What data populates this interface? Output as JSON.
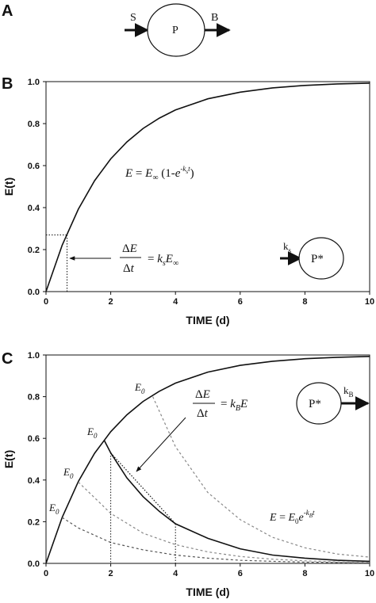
{
  "panels": {
    "a": {
      "letter": "A",
      "input_label": "S",
      "pool_label": "P",
      "output_label": "B"
    },
    "b": {
      "letter": "B",
      "pool_label": "P*",
      "rate_label": "k",
      "rate_sub": "s"
    },
    "c": {
      "letter": "C",
      "pool_label": "P*",
      "rate_label": "k",
      "rate_sub": "B",
      "e0": "E",
      "e0_sub": "0"
    }
  },
  "chart_data": [
    {
      "type": "line",
      "panel": "B",
      "xlabel": "TIME (d)",
      "ylabel": "E(t)",
      "xlim": [
        0,
        10
      ],
      "ylim": [
        0,
        1.0
      ],
      "x_ticks": [
        "0",
        "2",
        "4",
        "6",
        "8",
        "10"
      ],
      "y_ticks": [
        "0.0",
        "0.2",
        "0.4",
        "0.6",
        "0.8",
        "1.0"
      ],
      "grid": false,
      "ks": 0.5,
      "series": [
        {
          "style": "solid",
          "x": [
            0,
            0.5,
            1,
            1.5,
            2,
            2.5,
            3,
            3.5,
            4,
            5,
            6,
            7,
            8,
            9,
            10
          ],
          "y": [
            0,
            0.221,
            0.393,
            0.528,
            0.632,
            0.713,
            0.777,
            0.826,
            0.865,
            0.918,
            0.95,
            0.97,
            0.982,
            0.989,
            0.993
          ]
        }
      ],
      "annotations": [
        {
          "kind": "dotted-marker",
          "x": 0.65,
          "y": 0.27
        },
        {
          "kind": "equation",
          "id": "saturation",
          "text": "E = E∞ (1-e-kst)"
        },
        {
          "kind": "equation",
          "id": "initial-slope",
          "text": "ΔE/Δt = ks E∞"
        }
      ]
    },
    {
      "type": "line",
      "panel": "C",
      "xlabel": "TIME (d)",
      "ylabel": "E(t)",
      "xlim": [
        0,
        10
      ],
      "ylim": [
        0,
        1.0
      ],
      "x_ticks": [
        "0",
        "2",
        "4",
        "6",
        "8",
        "10"
      ],
      "y_ticks": [
        "0.0",
        "0.2",
        "0.4",
        "0.6",
        "0.8",
        "1.0"
      ],
      "grid": false,
      "ks": 0.5,
      "kB": 0.5,
      "series": [
        {
          "style": "solid",
          "x": [
            0,
            0.5,
            1,
            1.5,
            2,
            2.5,
            3,
            3.5,
            4,
            5,
            6,
            7,
            8,
            9,
            10
          ],
          "y": [
            0,
            0.221,
            0.393,
            0.528,
            0.632,
            0.713,
            0.777,
            0.826,
            0.865,
            0.918,
            0.95,
            0.97,
            0.982,
            0.989,
            0.993
          ]
        },
        {
          "style": "solid",
          "x": [
            1.8,
            2,
            2.5,
            3,
            3.5,
            4,
            5,
            6,
            7,
            8,
            9,
            10
          ],
          "y": [
            0.59,
            0.53,
            0.41,
            0.32,
            0.25,
            0.19,
            0.12,
            0.07,
            0.04,
            0.025,
            0.015,
            0.01
          ]
        },
        {
          "style": "dashed",
          "x": [
            0.5,
            1,
            2,
            3,
            4,
            5,
            6,
            7,
            8,
            9,
            10
          ],
          "y": [
            0.22,
            0.17,
            0.1,
            0.065,
            0.04,
            0.025,
            0.015,
            0.01,
            0.006,
            0.004,
            0.002
          ]
        },
        {
          "style": "dashed",
          "x": [
            1,
            2,
            3,
            4,
            5,
            6,
            7,
            8,
            9,
            10
          ],
          "y": [
            0.39,
            0.24,
            0.145,
            0.09,
            0.055,
            0.033,
            0.02,
            0.012,
            0.007,
            0.004
          ]
        },
        {
          "style": "dashed",
          "x": [
            3.3,
            4,
            5,
            6,
            7,
            8,
            9,
            10
          ],
          "y": [
            0.8,
            0.56,
            0.34,
            0.21,
            0.125,
            0.075,
            0.045,
            0.03
          ]
        }
      ],
      "annotations": [
        {
          "kind": "initial-slope-line",
          "x": [
            2,
            4
          ],
          "y": [
            0.53,
            0.19
          ]
        },
        {
          "kind": "dotted-marker",
          "x": 2
        },
        {
          "kind": "dotted-marker",
          "x": 4
        },
        {
          "kind": "equation",
          "id": "decay-rate",
          "text": "ΔE/Δt = kB E"
        },
        {
          "kind": "equation",
          "id": "decay",
          "text": "E = E0 e-kBt"
        }
      ]
    }
  ]
}
